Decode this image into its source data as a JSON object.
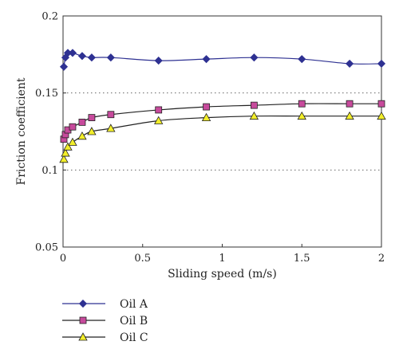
{
  "chart_data": {
    "type": "line",
    "title": "",
    "xlabel": "Sliding speed (m/s)",
    "ylabel": "Friction coefficient",
    "xlim": [
      0,
      2
    ],
    "ylim": [
      0.05,
      0.2
    ],
    "xticks": [
      {
        "value": 0,
        "label": "0"
      },
      {
        "value": 0.5,
        "label": "0.5"
      },
      {
        "value": 1,
        "label": "1"
      },
      {
        "value": 1.5,
        "label": "1.5"
      },
      {
        "value": 2,
        "label": "2"
      }
    ],
    "yticks": [
      {
        "value": 0.05,
        "label": "0.05"
      },
      {
        "value": 0.1,
        "label": "0.1"
      },
      {
        "value": 0.15,
        "label": "0.15"
      },
      {
        "value": 0.2,
        "label": "0.2"
      }
    ],
    "gridlines_y": [
      0.1,
      0.15
    ],
    "grid": "horizontal dotted",
    "legend_position": "bottom-left",
    "series": [
      {
        "name": "Oil A",
        "marker": "diamond",
        "color": "#2e3192",
        "fill": "#2e3192",
        "points": [
          [
            0.005,
            0.167
          ],
          [
            0.015,
            0.173
          ],
          [
            0.03,
            0.176
          ],
          [
            0.06,
            0.176
          ],
          [
            0.12,
            0.174
          ],
          [
            0.18,
            0.173
          ],
          [
            0.3,
            0.173
          ],
          [
            0.6,
            0.171
          ],
          [
            0.9,
            0.172
          ],
          [
            1.2,
            0.173
          ],
          [
            1.5,
            0.172
          ],
          [
            1.8,
            0.169
          ],
          [
            2.0,
            0.169
          ]
        ]
      },
      {
        "name": "Oil B",
        "marker": "square",
        "color": "#222222",
        "fill": "#c74a9c",
        "points": [
          [
            0.005,
            0.12
          ],
          [
            0.015,
            0.123
          ],
          [
            0.03,
            0.126
          ],
          [
            0.06,
            0.128
          ],
          [
            0.12,
            0.131
          ],
          [
            0.18,
            0.134
          ],
          [
            0.3,
            0.136
          ],
          [
            0.6,
            0.139
          ],
          [
            0.9,
            0.141
          ],
          [
            1.2,
            0.142
          ],
          [
            1.5,
            0.143
          ],
          [
            1.8,
            0.143
          ],
          [
            2.0,
            0.143
          ]
        ]
      },
      {
        "name": "Oil C",
        "marker": "triangle",
        "color": "#222222",
        "fill": "#f2ee2a",
        "points": [
          [
            0.005,
            0.107
          ],
          [
            0.015,
            0.111
          ],
          [
            0.03,
            0.115
          ],
          [
            0.06,
            0.118
          ],
          [
            0.12,
            0.122
          ],
          [
            0.18,
            0.125
          ],
          [
            0.3,
            0.127
          ],
          [
            0.6,
            0.132
          ],
          [
            0.9,
            0.134
          ],
          [
            1.2,
            0.135
          ],
          [
            1.5,
            0.135
          ],
          [
            1.8,
            0.135
          ],
          [
            2.0,
            0.135
          ]
        ]
      }
    ]
  }
}
